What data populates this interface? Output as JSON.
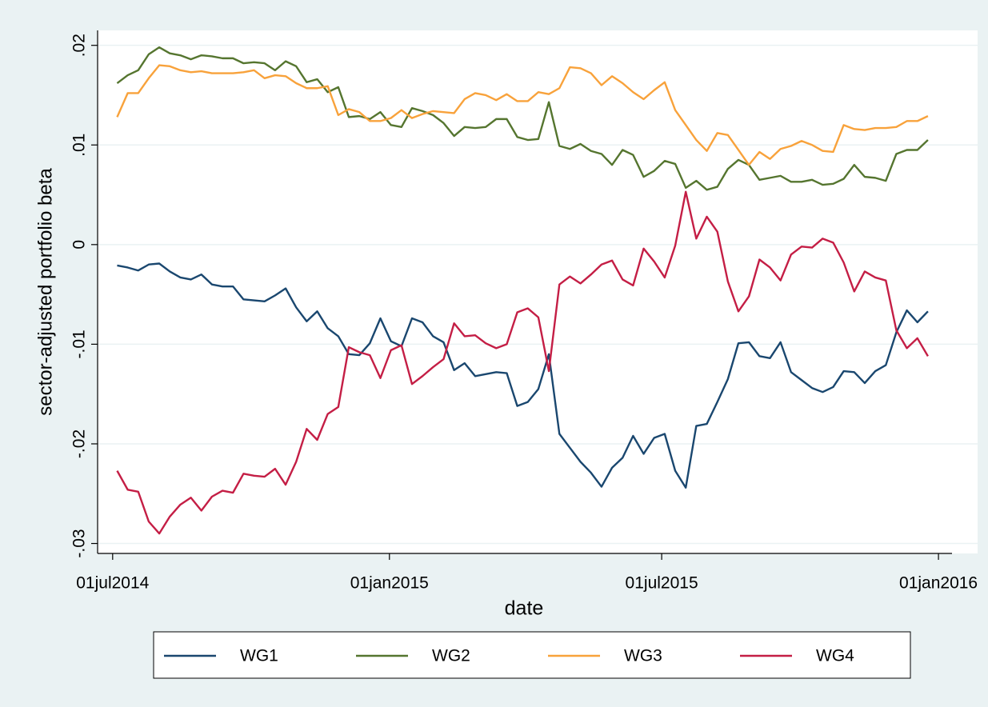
{
  "chart_data": {
    "type": "line",
    "x_label": "date",
    "y_label": "sector-adjusted portfolio beta",
    "x": [
      "2014-07-04",
      "2014-07-11",
      "2014-07-18",
      "2014-07-25",
      "2014-08-01",
      "2014-08-08",
      "2014-08-15",
      "2014-08-22",
      "2014-08-29",
      "2014-09-05",
      "2014-09-12",
      "2014-09-19",
      "2014-09-26",
      "2014-10-03",
      "2014-10-10",
      "2014-10-17",
      "2014-10-24",
      "2014-10-31",
      "2014-11-07",
      "2014-11-14",
      "2014-11-21",
      "2014-11-28",
      "2014-12-05",
      "2014-12-12",
      "2014-12-19",
      "2014-12-26",
      "2015-01-02",
      "2015-01-09",
      "2015-01-16",
      "2015-01-23",
      "2015-01-30",
      "2015-02-06",
      "2015-02-13",
      "2015-02-20",
      "2015-02-27",
      "2015-03-06",
      "2015-03-13",
      "2015-03-20",
      "2015-03-27",
      "2015-04-03",
      "2015-04-10",
      "2015-04-17",
      "2015-04-24",
      "2015-05-01",
      "2015-05-08",
      "2015-05-15",
      "2015-05-22",
      "2015-05-29",
      "2015-06-05",
      "2015-06-12",
      "2015-06-19",
      "2015-06-26",
      "2015-07-03",
      "2015-07-10",
      "2015-07-17",
      "2015-07-24",
      "2015-07-31",
      "2015-08-07",
      "2015-08-14",
      "2015-08-21",
      "2015-08-28",
      "2015-09-04",
      "2015-09-11",
      "2015-09-18",
      "2015-09-25",
      "2015-10-02",
      "2015-10-09",
      "2015-10-16",
      "2015-10-23",
      "2015-10-30",
      "2015-11-06",
      "2015-11-13",
      "2015-11-20",
      "2015-11-27",
      "2015-12-04",
      "2015-12-11",
      "2015-12-18",
      "2015-12-25"
    ],
    "series": [
      {
        "name": "WG1",
        "color": "#1a476f",
        "values": [
          -0.0021,
          -0.0023,
          -0.0026,
          -0.002,
          -0.0019,
          -0.0027,
          -0.0033,
          -0.0035,
          -0.003,
          -0.004,
          -0.0042,
          -0.0042,
          -0.0055,
          -0.0056,
          -0.0057,
          -0.0051,
          -0.0044,
          -0.0063,
          -0.0077,
          -0.0067,
          -0.0084,
          -0.0092,
          -0.011,
          -0.0111,
          -0.0099,
          -0.0074,
          -0.0097,
          -0.0102,
          -0.0074,
          -0.0078,
          -0.0092,
          -0.0098,
          -0.0126,
          -0.0119,
          -0.0132,
          -0.013,
          -0.0128,
          -0.0129,
          -0.0162,
          -0.0158,
          -0.0145,
          -0.011,
          -0.019,
          -0.0204,
          -0.0218,
          -0.0229,
          -0.0243,
          -0.0224,
          -0.0214,
          -0.0192,
          -0.021,
          -0.0194,
          -0.019,
          -0.0227,
          -0.0244,
          -0.0182,
          -0.018,
          -0.0158,
          -0.0135,
          -0.0099,
          -0.0098,
          -0.0112,
          -0.0114,
          -0.0098,
          -0.0128,
          -0.0136,
          -0.0144,
          -0.0148,
          -0.0143,
          -0.0127,
          -0.0128,
          -0.0139,
          -0.0127,
          -0.0121,
          -0.0088,
          -0.0066,
          -0.0078,
          -0.0067
        ]
      },
      {
        "name": "WG2",
        "color": "#55752f",
        "values": [
          0.0162,
          0.017,
          0.0175,
          0.0191,
          0.0198,
          0.0192,
          0.019,
          0.0186,
          0.019,
          0.0189,
          0.0187,
          0.0187,
          0.0182,
          0.0183,
          0.0182,
          0.0175,
          0.0184,
          0.0179,
          0.0163,
          0.0166,
          0.0153,
          0.0158,
          0.0128,
          0.0129,
          0.0126,
          0.0133,
          0.012,
          0.0118,
          0.0137,
          0.0134,
          0.013,
          0.0122,
          0.0109,
          0.0118,
          0.0117,
          0.0118,
          0.0126,
          0.0126,
          0.0108,
          0.0105,
          0.0106,
          0.0143,
          0.0099,
          0.0096,
          0.0101,
          0.0094,
          0.0091,
          0.008,
          0.0095,
          0.009,
          0.0068,
          0.0074,
          0.0084,
          0.0081,
          0.0057,
          0.0064,
          0.0055,
          0.0058,
          0.0076,
          0.0085,
          0.008,
          0.0065,
          0.0067,
          0.0069,
          0.0063,
          0.0063,
          0.0065,
          0.006,
          0.0061,
          0.0066,
          0.008,
          0.0068,
          0.0067,
          0.0064,
          0.0091,
          0.0095,
          0.0095,
          0.0105
        ]
      },
      {
        "name": "WG3",
        "color": "#f8a23b",
        "values": [
          0.0128,
          0.0152,
          0.0152,
          0.0167,
          0.018,
          0.0179,
          0.0175,
          0.0173,
          0.0174,
          0.0172,
          0.0172,
          0.0172,
          0.0173,
          0.0175,
          0.0167,
          0.017,
          0.0169,
          0.0162,
          0.0157,
          0.0157,
          0.0159,
          0.013,
          0.0136,
          0.0133,
          0.0124,
          0.0124,
          0.0127,
          0.0135,
          0.0127,
          0.0131,
          0.0134,
          0.0133,
          0.0132,
          0.0146,
          0.0152,
          0.015,
          0.0145,
          0.0151,
          0.0144,
          0.0144,
          0.0153,
          0.0151,
          0.0157,
          0.0178,
          0.0177,
          0.0172,
          0.016,
          0.0169,
          0.0162,
          0.0153,
          0.0146,
          0.0155,
          0.0163,
          0.0135,
          0.012,
          0.0105,
          0.0094,
          0.0112,
          0.011,
          0.0095,
          0.008,
          0.0093,
          0.0086,
          0.0096,
          0.0099,
          0.0104,
          0.01,
          0.0094,
          0.0093,
          0.012,
          0.0116,
          0.0115,
          0.0117,
          0.0117,
          0.0118,
          0.0124,
          0.0124,
          0.0129
        ]
      },
      {
        "name": "WG4",
        "color": "#c41e45",
        "values": [
          -0.0227,
          -0.0246,
          -0.0248,
          -0.0278,
          -0.029,
          -0.0273,
          -0.0261,
          -0.0254,
          -0.0267,
          -0.0253,
          -0.0247,
          -0.0249,
          -0.023,
          -0.0232,
          -0.0233,
          -0.0225,
          -0.0241,
          -0.0218,
          -0.0185,
          -0.0196,
          -0.017,
          -0.0163,
          -0.0103,
          -0.0108,
          -0.0111,
          -0.0134,
          -0.0106,
          -0.0101,
          -0.014,
          -0.0132,
          -0.0123,
          -0.0115,
          -0.0079,
          -0.0092,
          -0.0091,
          -0.0099,
          -0.0104,
          -0.01,
          -0.0068,
          -0.0064,
          -0.0073,
          -0.0127,
          -0.004,
          -0.0032,
          -0.0039,
          -0.003,
          -0.002,
          -0.0016,
          -0.0035,
          -0.0041,
          -0.0004,
          -0.0017,
          -0.0033,
          -0.0001,
          0.0053,
          0.0006,
          0.0028,
          0.0013,
          -0.0037,
          -0.0067,
          -0.0052,
          -0.0015,
          -0.0023,
          -0.0036,
          -0.001,
          -0.0002,
          -0.0003,
          0.0006,
          0.0002,
          -0.0018,
          -0.0047,
          -0.0027,
          -0.0033,
          -0.0036,
          -0.0086,
          -0.0104,
          -0.0094,
          -0.0112
        ]
      }
    ],
    "xlim": [
      "2014-06-21",
      "2016-01-10"
    ],
    "xticks": [
      {
        "value": "2014-07-01",
        "label": "01jul2014"
      },
      {
        "value": "2015-01-01",
        "label": "01jan2015"
      },
      {
        "value": "2015-07-01",
        "label": "01jul2015"
      },
      {
        "value": "2016-01-01",
        "label": "01jan2016"
      }
    ],
    "ylim": [
      -0.031,
      0.0215
    ],
    "yticks": [
      {
        "value": -0.03,
        "label": "-.03"
      },
      {
        "value": -0.02,
        "label": "-.02"
      },
      {
        "value": -0.01,
        "label": "-.01"
      },
      0,
      {
        "value": 0.01,
        "label": ".01"
      },
      {
        "value": 0.02,
        "label": ".02"
      }
    ],
    "grid": true,
    "legend": "bottom"
  }
}
